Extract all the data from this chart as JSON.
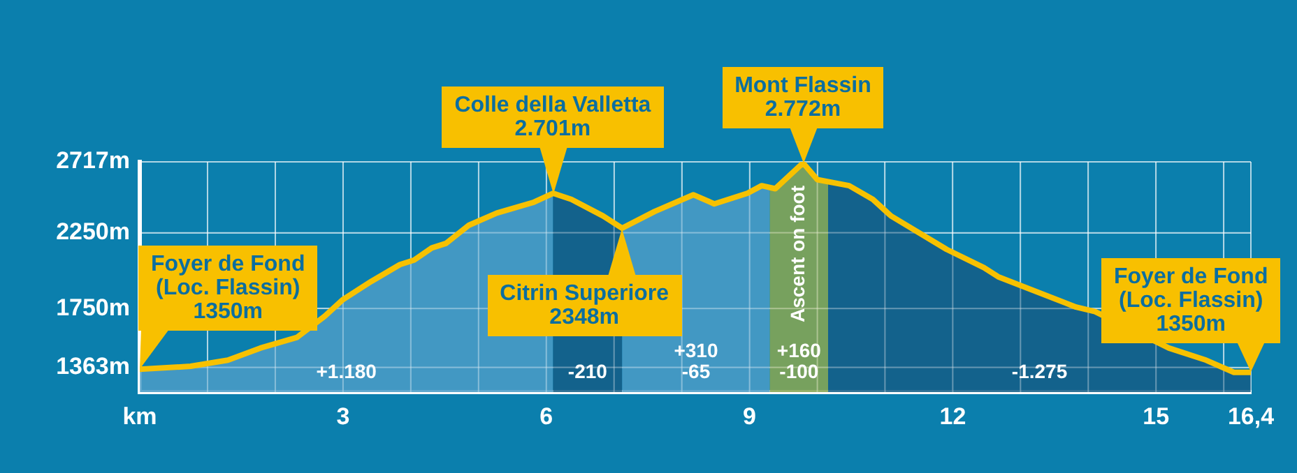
{
  "chart_data": {
    "type": "line",
    "x": [
      0,
      0.75,
      1.3,
      1.78,
      2.32,
      2.73,
      3.0,
      3.42,
      3.84,
      4.05,
      4.31,
      4.52,
      4.86,
      5.27,
      5.81,
      6.1,
      6.37,
      6.84,
      7.12,
      7.6,
      8.17,
      8.48,
      8.97,
      9.18,
      9.38,
      9.79,
      10.0,
      10.47,
      10.82,
      11.09,
      11.91,
      12.46,
      12.67,
      13.82,
      14.1,
      15.19,
      15.74,
      16.15,
      16.4
    ],
    "series": [
      {
        "color": "#f7c100",
        "values": [
          1350,
          1370,
          1410,
          1490,
          1560,
          1700,
          1810,
          1930,
          2040,
          2070,
          2150,
          2180,
          2300,
          2380,
          2450,
          2510,
          2470,
          2360,
          2280,
          2390,
          2500,
          2440,
          2510,
          2560,
          2540,
          2710,
          2600,
          2560,
          2470,
          2360,
          2140,
          2020,
          1960,
          1760,
          1730,
          1490,
          1410,
          1330,
          1330
        ]
      }
    ],
    "xlim": [
      0,
      16.4
    ],
    "ylim": [
      1200,
      2717
    ],
    "xticks": [
      {
        "value": 0,
        "label": "km"
      },
      {
        "value": 1,
        "label": null
      },
      {
        "value": 2,
        "label": null
      },
      3,
      {
        "value": 4,
        "label": null
      },
      {
        "value": 5,
        "label": null
      },
      6,
      {
        "value": 7,
        "label": null
      },
      {
        "value": 8,
        "label": null
      },
      9,
      {
        "value": 10,
        "label": null
      },
      {
        "value": 11,
        "label": null
      },
      12,
      {
        "value": 13,
        "label": null
      },
      {
        "value": 14,
        "label": null
      },
      15,
      {
        "value": 16,
        "label": null
      },
      {
        "value": 16.4,
        "label": "16,4"
      }
    ],
    "yticks": [
      {
        "value": 1363,
        "label": "1363m"
      },
      {
        "value": 1750,
        "label": "1750m"
      },
      {
        "value": 2250,
        "label": "2250m"
      },
      {
        "value": 2717,
        "label": "2717m"
      }
    ],
    "grid": true,
    "legend": false,
    "marker": "none",
    "line_style": "solid",
    "bands": [
      {
        "axis": "x",
        "from": 0,
        "to": 6.1,
        "label": "+1.180",
        "color": "#4a9cc6"
      },
      {
        "axis": "x",
        "from": 6.1,
        "to": 7.12,
        "label": "-210",
        "color": "#145f88"
      },
      {
        "axis": "x",
        "from": 7.12,
        "to": 9.3,
        "label": "+310\n-65",
        "color": "#4a9cc6"
      },
      {
        "axis": "x",
        "from": 9.3,
        "to": 10.16,
        "label": "+160\n-100",
        "color": "#86a653"
      },
      {
        "axis": "x",
        "from": 10.16,
        "to": 16.4,
        "label": "-1.275",
        "color": "#145f88"
      }
    ],
    "annotations": [
      {
        "text": "Foyer de Fond\n(Loc. Flassin)\n1350m",
        "x": 0,
        "y": 1350
      },
      {
        "text": "Colle della Valletta\n2.701m",
        "x": 6.1,
        "y": 2510
      },
      {
        "text": "Citrin Superiore\n2348m",
        "x": 7.12,
        "y": 2280
      },
      {
        "text": "Mont Flassin\n2.772m",
        "x": 9.79,
        "y": 2710
      },
      {
        "text": "Foyer de Fond\n(Loc. Flassin)\n1350m",
        "x": 16.4,
        "y": 1330
      },
      "Ascent on foot"
    ]
  }
}
